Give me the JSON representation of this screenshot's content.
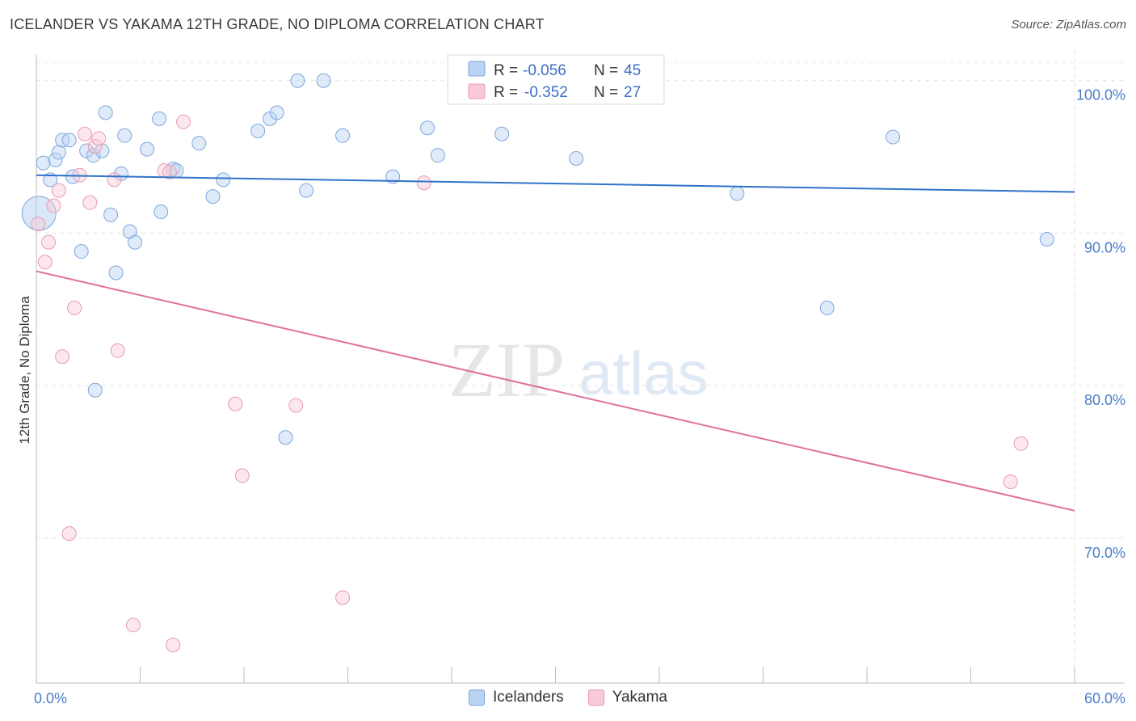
{
  "header": {
    "title": "ICELANDER VS YAKAMA 12TH GRADE, NO DIPLOMA CORRELATION CHART",
    "source": "Source: ZipAtlas.com"
  },
  "watermark": {
    "zip": "ZIP",
    "atlas": "atlas"
  },
  "chart_data": {
    "type": "scatter",
    "ylabel": "12th Grade, No Diploma",
    "xlim": [
      0,
      60
    ],
    "ylim": [
      60.5,
      102
    ],
    "y_ticks": [
      {
        "value": 100,
        "label": "100.0%"
      },
      {
        "value": 90,
        "label": "90.0%"
      },
      {
        "value": 80,
        "label": "80.0%"
      },
      {
        "value": 70,
        "label": "70.0%"
      }
    ],
    "x_tick_labels": [
      {
        "value": 0,
        "label": "0.0%"
      },
      {
        "value": 60,
        "label": "60.0%"
      }
    ],
    "x_minor_ticks": [
      0,
      6,
      12,
      18,
      24,
      30,
      36,
      42,
      48,
      54,
      60
    ],
    "grid": true,
    "legend": {
      "placement": "top-center",
      "rows": [
        {
          "r_label": "R =",
          "r_value": "-0.056",
          "n_label": "N =",
          "n_value": "45"
        },
        {
          "r_label": "R =",
          "r_value": "-0.352",
          "n_label": "N =",
          "n_value": "27"
        }
      ]
    },
    "series": [
      {
        "name": "Icelanders",
        "color": "#7fa6db",
        "fill": "#b9d3f2",
        "trend": {
          "x0": 0,
          "y0": 93.8,
          "x1": 60,
          "y1": 92.7
        },
        "points": [
          [
            0.15,
            91.3
          ],
          [
            0.4,
            94.6
          ],
          [
            0.8,
            93.5
          ],
          [
            1.1,
            94.8
          ],
          [
            1.3,
            95.3
          ],
          [
            1.5,
            96.1
          ],
          [
            1.9,
            96.1
          ],
          [
            2.1,
            93.7
          ],
          [
            2.6,
            88.8
          ],
          [
            2.9,
            95.4
          ],
          [
            3.3,
            95.1
          ],
          [
            3.4,
            79.7
          ],
          [
            3.8,
            95.4
          ],
          [
            4.0,
            97.9
          ],
          [
            4.3,
            91.2
          ],
          [
            4.6,
            87.4
          ],
          [
            4.9,
            93.9
          ],
          [
            5.1,
            96.4
          ],
          [
            5.4,
            90.1
          ],
          [
            5.7,
            89.4
          ],
          [
            6.4,
            95.5
          ],
          [
            7.1,
            97.5
          ],
          [
            7.2,
            91.4
          ],
          [
            7.9,
            94.2
          ],
          [
            8.1,
            94.1
          ],
          [
            9.4,
            95.9
          ],
          [
            10.2,
            92.4
          ],
          [
            10.8,
            93.5
          ],
          [
            12.8,
            96.7
          ],
          [
            13.5,
            97.5
          ],
          [
            13.9,
            97.9
          ],
          [
            14.4,
            76.6
          ],
          [
            15.1,
            100.0
          ],
          [
            15.6,
            92.8
          ],
          [
            16.6,
            100.0
          ],
          [
            17.7,
            96.4
          ],
          [
            20.6,
            93.7
          ],
          [
            22.6,
            96.9
          ],
          [
            23.2,
            95.1
          ],
          [
            26.9,
            96.5
          ],
          [
            31.2,
            94.9
          ],
          [
            40.5,
            92.6
          ],
          [
            45.7,
            85.1
          ],
          [
            49.5,
            96.3
          ],
          [
            58.4,
            89.6
          ]
        ]
      },
      {
        "name": "Yakama",
        "color": "#e89ab3",
        "fill": "#f9c9d8",
        "trend": {
          "x0": 0,
          "y0": 87.5,
          "x1": 60,
          "y1": 71.8
        },
        "points": [
          [
            0.1,
            90.6
          ],
          [
            0.5,
            88.1
          ],
          [
            0.7,
            89.4
          ],
          [
            1.0,
            91.8
          ],
          [
            1.3,
            92.8
          ],
          [
            1.5,
            81.9
          ],
          [
            1.9,
            70.3
          ],
          [
            2.2,
            85.1
          ],
          [
            2.5,
            93.8
          ],
          [
            2.8,
            96.5
          ],
          [
            3.1,
            92.0
          ],
          [
            3.4,
            95.7
          ],
          [
            3.6,
            96.2
          ],
          [
            4.5,
            93.5
          ],
          [
            4.7,
            82.3
          ],
          [
            5.6,
            64.3
          ],
          [
            7.4,
            94.1
          ],
          [
            7.7,
            94.0
          ],
          [
            7.9,
            63.0
          ],
          [
            8.5,
            97.3
          ],
          [
            11.5,
            78.8
          ],
          [
            11.9,
            74.1
          ],
          [
            15.0,
            78.7
          ],
          [
            17.7,
            66.1
          ],
          [
            22.4,
            93.3
          ],
          [
            56.3,
            73.7
          ],
          [
            56.9,
            76.2
          ]
        ]
      }
    ]
  }
}
